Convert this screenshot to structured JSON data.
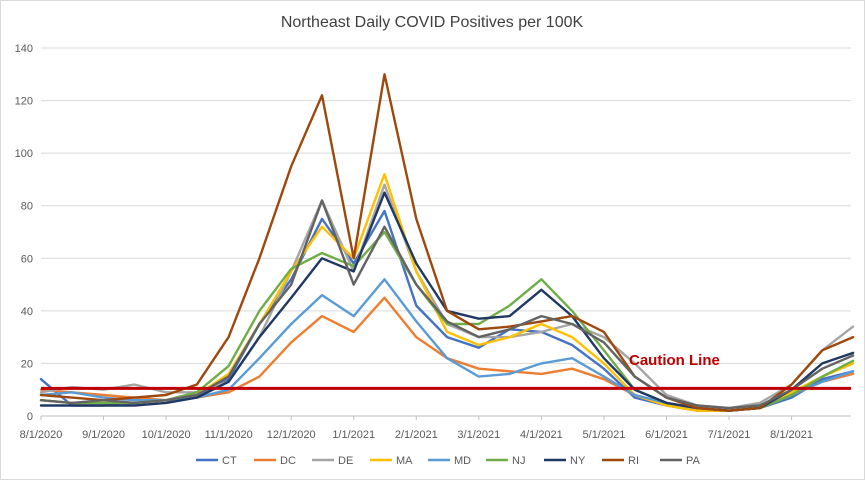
{
  "chart_data": {
    "type": "line",
    "title": "Northeast Daily COVID Positives per 100K",
    "xlabel": "",
    "ylabel": "",
    "ylim": [
      0,
      140
    ],
    "yticks": [
      "0",
      "20",
      "40",
      "60",
      "80",
      "100",
      "120",
      "140"
    ],
    "xticks": [
      "8/1/2020",
      "9/1/2020",
      "10/1/2020",
      "11/1/2020",
      "12/1/2020",
      "1/1/2021",
      "2/1/2021",
      "3/1/2021",
      "4/1/2021",
      "5/1/2021",
      "6/1/2021",
      "7/1/2021",
      "8/1/2021"
    ],
    "x": [
      "8/1/2020",
      "8/16/2020",
      "9/1/2020",
      "9/16/2020",
      "10/1/2020",
      "10/16/2020",
      "11/1/2020",
      "11/16/2020",
      "12/1/2020",
      "12/16/2020",
      "1/1/2021",
      "1/16/2021",
      "2/1/2021",
      "2/16/2021",
      "3/1/2021",
      "3/16/2021",
      "4/1/2021",
      "4/16/2021",
      "5/1/2021",
      "5/16/2021",
      "6/1/2021",
      "6/16/2021",
      "7/1/2021",
      "7/16/2021",
      "8/1/2021",
      "8/16/2021",
      "8/31/2021"
    ],
    "grid": true,
    "legend_position": "bottom",
    "caution_line": {
      "label": "Caution Line",
      "value": 10.5,
      "color": "#c00000"
    },
    "series": [
      {
        "name": "CT",
        "color": "#4472c4",
        "values": [
          14,
          4,
          4,
          5,
          6,
          7,
          14,
          35,
          52,
          75,
          58,
          78,
          42,
          30,
          26,
          33,
          32,
          27,
          18,
          7,
          4,
          2,
          2,
          3,
          7,
          14,
          17
        ]
      },
      {
        "name": "DC",
        "color": "#ed7d31",
        "values": [
          10,
          9,
          8,
          7,
          6,
          7,
          9,
          15,
          28,
          38,
          32,
          45,
          30,
          22,
          18,
          17,
          16,
          18,
          14,
          8,
          4,
          2,
          2,
          3,
          8,
          13,
          16
        ]
      },
      {
        "name": "DE",
        "color": "#a5a5a5",
        "values": [
          9,
          11,
          10,
          12,
          9,
          9,
          13,
          30,
          55,
          82,
          55,
          88,
          55,
          35,
          30,
          30,
          32,
          35,
          30,
          20,
          8,
          4,
          3,
          5,
          12,
          25,
          34
        ]
      },
      {
        "name": "MA",
        "color": "#ffc000",
        "values": [
          6,
          5,
          5,
          5,
          6,
          8,
          16,
          35,
          55,
          72,
          60,
          92,
          55,
          32,
          27,
          30,
          35,
          30,
          20,
          8,
          4,
          2,
          2,
          4,
          9,
          15,
          20
        ]
      },
      {
        "name": "MD",
        "color": "#5b9bd5",
        "values": [
          8,
          9,
          7,
          6,
          6,
          7,
          10,
          22,
          35,
          46,
          38,
          52,
          36,
          22,
          15,
          16,
          20,
          22,
          15,
          8,
          5,
          3,
          2,
          3,
          8,
          13,
          17
        ]
      },
      {
        "name": "NJ",
        "color": "#70ad47",
        "values": [
          6,
          5,
          5,
          5,
          6,
          9,
          19,
          40,
          56,
          62,
          57,
          70,
          50,
          35,
          35,
          42,
          52,
          40,
          25,
          10,
          5,
          3,
          2,
          3,
          8,
          15,
          21
        ]
      },
      {
        "name": "NY",
        "color": "#1f3864",
        "values": [
          4,
          4,
          4,
          4,
          5,
          7,
          13,
          30,
          45,
          60,
          55,
          85,
          58,
          40,
          37,
          38,
          48,
          38,
          22,
          10,
          5,
          3,
          2,
          3,
          10,
          20,
          24
        ]
      },
      {
        "name": "RI",
        "color": "#9e480e",
        "values": [
          8,
          7,
          6,
          7,
          8,
          12,
          30,
          60,
          95,
          122,
          60,
          130,
          75,
          40,
          33,
          34,
          36,
          38,
          32,
          15,
          7,
          3,
          2,
          3,
          12,
          25,
          30
        ]
      },
      {
        "name": "PA",
        "color": "#636363",
        "values": [
          6,
          5,
          6,
          5,
          6,
          8,
          15,
          35,
          50,
          82,
          50,
          72,
          50,
          36,
          30,
          33,
          38,
          35,
          28,
          15,
          7,
          4,
          3,
          4,
          10,
          18,
          23
        ]
      }
    ]
  }
}
